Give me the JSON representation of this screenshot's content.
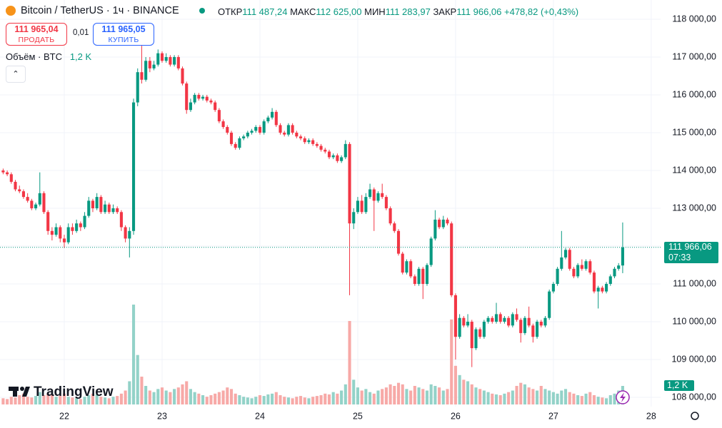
{
  "chart_data": {
    "type": "candlestick",
    "symbol": "Bitcoin / TetherUS · 1ч · BINANCE",
    "ohlc": [
      {
        "label": "ОТКР",
        "value": "111 487,24"
      },
      {
        "label": "МАКС",
        "value": "112 625,00"
      },
      {
        "label": "МИН",
        "value": "111 283,97"
      },
      {
        "label": "ЗАКР",
        "value": "111 966,06"
      }
    ],
    "change": "+478,82 (+0,43%)",
    "sell": {
      "price": "111 965,04",
      "label": "ПРОДАТЬ"
    },
    "spread": "0,01",
    "buy": {
      "price": "111 965,05",
      "label": "КУПИТЬ"
    },
    "last_price_label": "111 966,06",
    "countdown": "07:33",
    "logo": "TradingView",
    "up_color": "#089981",
    "down_color": "#f23645",
    "up_volume_color": "#93d2c8",
    "down_volume_color": "#f7a9a7",
    "grid": true,
    "xlim": [
      8.23,
      170.3
    ],
    "xticks": [
      {
        "value": 24,
        "label": "22"
      },
      {
        "value": 48,
        "label": "23"
      },
      {
        "value": 72,
        "label": "24"
      },
      {
        "value": 96,
        "label": "25"
      },
      {
        "value": 120,
        "label": "26"
      },
      {
        "value": 144,
        "label": "27"
      },
      {
        "value": 168,
        "label": "28"
      }
    ],
    "ylim": [
      107755,
      118509
    ],
    "yticks": [
      {
        "value": 108000,
        "label": "108 000,00"
      },
      {
        "value": 109000,
        "label": "109 000,00"
      },
      {
        "value": 110000,
        "label": "110 000,00"
      },
      {
        "value": 111000,
        "label": "111 000,00"
      },
      {
        "value": 112000,
        "label": "112 000,00"
      },
      {
        "value": 113000,
        "label": "113 000,00"
      },
      {
        "value": 114000,
        "label": "114 000,00"
      },
      {
        "value": 115000,
        "label": "115 000,00"
      },
      {
        "value": 116000,
        "label": "116 000,00"
      },
      {
        "value": 117000,
        "label": "117 000,00"
      },
      {
        "value": 118000,
        "label": "118 000,00"
      }
    ],
    "x": [
      9,
      10,
      11,
      12,
      13,
      14,
      15,
      16,
      17,
      18,
      19,
      20,
      21,
      22,
      23,
      24,
      25,
      26,
      27,
      28,
      29,
      30,
      31,
      32,
      33,
      34,
      35,
      36,
      37,
      38,
      39,
      40,
      41,
      42,
      43,
      44,
      45,
      46,
      47,
      48,
      49,
      50,
      51,
      52,
      53,
      54,
      55,
      56,
      57,
      58,
      59,
      60,
      61,
      62,
      63,
      64,
      65,
      66,
      67,
      68,
      69,
      70,
      71,
      72,
      73,
      74,
      75,
      76,
      77,
      78,
      79,
      80,
      81,
      82,
      83,
      84,
      85,
      86,
      87,
      88,
      89,
      90,
      91,
      92,
      93,
      94,
      95,
      96,
      97,
      98,
      99,
      100,
      101,
      102,
      103,
      104,
      105,
      106,
      107,
      108,
      109,
      110,
      111,
      112,
      113,
      114,
      115,
      116,
      117,
      118,
      119,
      120,
      121,
      122,
      123,
      124,
      125,
      126,
      127,
      128,
      129,
      130,
      131,
      132,
      133,
      134,
      135,
      136,
      137,
      138,
      139,
      140,
      141,
      142,
      143,
      144,
      145,
      146,
      147,
      148,
      149,
      150,
      151,
      152,
      153,
      154,
      155,
      156,
      157,
      158,
      159,
      160,
      161
    ],
    "candles": [
      [
        114000,
        114050,
        113900,
        113950
      ],
      [
        113950,
        114000,
        113850,
        113900
      ],
      [
        113900,
        113950,
        113650,
        113700
      ],
      [
        113700,
        113750,
        113450,
        113500
      ],
      [
        113500,
        113600,
        113400,
        113450
      ],
      [
        113450,
        113500,
        113250,
        113300
      ],
      [
        113300,
        113400,
        113150,
        113200
      ],
      [
        113200,
        113250,
        112950,
        113000
      ],
      [
        113000,
        113150,
        112950,
        113100
      ],
      [
        113100,
        113950,
        113050,
        113400
      ],
      [
        113400,
        113450,
        112850,
        112900
      ],
      [
        112900,
        112950,
        112300,
        112400
      ],
      [
        112400,
        112500,
        112150,
        112300
      ],
      [
        112300,
        112600,
        112250,
        112500
      ],
      [
        112500,
        112550,
        112100,
        112200
      ],
      [
        112200,
        112300,
        111950,
        112100
      ],
      [
        112100,
        112600,
        112050,
        112500
      ],
      [
        112500,
        112600,
        112300,
        112400
      ],
      [
        112400,
        112700,
        112350,
        112600
      ],
      [
        112600,
        112650,
        112400,
        112500
      ],
      [
        112500,
        112900,
        112450,
        112800
      ],
      [
        112800,
        113300,
        112750,
        113200
      ],
      [
        113200,
        113250,
        112900,
        113000
      ],
      [
        113000,
        113400,
        112950,
        113300
      ],
      [
        113300,
        113350,
        112850,
        112900
      ],
      [
        112900,
        113200,
        112850,
        113100
      ],
      [
        113100,
        113150,
        112850,
        112900
      ],
      [
        112900,
        113100,
        112850,
        113000
      ],
      [
        113000,
        113050,
        112850,
        112900
      ],
      [
        112900,
        112950,
        112400,
        112500
      ],
      [
        112500,
        112550,
        112100,
        112200
      ],
      [
        112200,
        112500,
        111700,
        112400
      ],
      [
        112400,
        115900,
        112300,
        115800
      ],
      [
        115800,
        116700,
        115700,
        116600
      ],
      [
        116600,
        117300,
        116300,
        116400
      ],
      [
        116400,
        117000,
        116350,
        116900
      ],
      [
        116900,
        117000,
        116600,
        116700
      ],
      [
        116700,
        116900,
        116650,
        116800
      ],
      [
        116800,
        117200,
        116750,
        117100
      ],
      [
        117100,
        117150,
        116850,
        116900
      ],
      [
        116900,
        117100,
        116850,
        117000
      ],
      [
        117000,
        117050,
        116750,
        116800
      ],
      [
        116800,
        117050,
        116750,
        117000
      ],
      [
        117000,
        117050,
        116650,
        116700
      ],
      [
        116700,
        116750,
        116250,
        116300
      ],
      [
        116300,
        116350,
        115500,
        115600
      ],
      [
        115600,
        115900,
        115550,
        115800
      ],
      [
        115800,
        116050,
        115750,
        116000
      ],
      [
        116000,
        116050,
        115850,
        115900
      ],
      [
        115900,
        116000,
        115850,
        115950
      ],
      [
        115950,
        116000,
        115800,
        115850
      ],
      [
        115850,
        115900,
        115750,
        115800
      ],
      [
        115800,
        115850,
        115550,
        115600
      ],
      [
        115600,
        115650,
        115250,
        115300
      ],
      [
        115300,
        115350,
        115100,
        115150
      ],
      [
        115150,
        115200,
        114950,
        115000
      ],
      [
        115000,
        115050,
        114650,
        114700
      ],
      [
        114700,
        114750,
        114550,
        114600
      ],
      [
        114600,
        114900,
        114550,
        114850
      ],
      [
        114850,
        114950,
        114800,
        114900
      ],
      [
        114900,
        115050,
        114850,
        115000
      ],
      [
        115000,
        115100,
        114950,
        115050
      ],
      [
        115050,
        115200,
        115000,
        115150
      ],
      [
        115150,
        115200,
        114950,
        115000
      ],
      [
        115000,
        115350,
        114950,
        115300
      ],
      [
        115300,
        115450,
        115250,
        115400
      ],
      [
        115400,
        115650,
        115350,
        115550
      ],
      [
        115550,
        115600,
        115150,
        115200
      ],
      [
        115200,
        115250,
        114950,
        115000
      ],
      [
        115000,
        115050,
        114900,
        114950
      ],
      [
        114950,
        115250,
        114900,
        115200
      ],
      [
        115200,
        115250,
        114950,
        115000
      ],
      [
        115000,
        115050,
        114850,
        114900
      ],
      [
        114900,
        114950,
        114800,
        114850
      ],
      [
        114850,
        114900,
        114700,
        114750
      ],
      [
        114750,
        114850,
        114700,
        114800
      ],
      [
        114800,
        114850,
        114650,
        114700
      ],
      [
        114700,
        114750,
        114600,
        114650
      ],
      [
        114650,
        114700,
        114500,
        114550
      ],
      [
        114550,
        114600,
        114450,
        114500
      ],
      [
        114500,
        114550,
        114300,
        114350
      ],
      [
        114350,
        114450,
        114300,
        114400
      ],
      [
        114400,
        114450,
        114200,
        114250
      ],
      [
        114250,
        114400,
        114200,
        114350
      ],
      [
        114350,
        114800,
        114300,
        114700
      ],
      [
        114700,
        114750,
        110700,
        112600
      ],
      [
        112600,
        113000,
        112450,
        112900
      ],
      [
        112900,
        113300,
        112850,
        113200
      ],
      [
        113200,
        113350,
        112850,
        112900
      ],
      [
        112900,
        113400,
        112850,
        113300
      ],
      [
        113300,
        113650,
        113250,
        113500
      ],
      [
        113500,
        113550,
        112400,
        113200
      ],
      [
        113200,
        113450,
        113150,
        113400
      ],
      [
        113400,
        113650,
        113250,
        113300
      ],
      [
        113300,
        113350,
        112950,
        113000
      ],
      [
        113000,
        113050,
        112550,
        112600
      ],
      [
        112600,
        112650,
        112350,
        112400
      ],
      [
        112400,
        112450,
        111750,
        111800
      ],
      [
        111800,
        111850,
        111250,
        111300
      ],
      [
        111300,
        111650,
        111250,
        111600
      ],
      [
        111600,
        111650,
        111150,
        111200
      ],
      [
        111200,
        111250,
        110950,
        111000
      ],
      [
        111000,
        111450,
        110950,
        111400
      ],
      [
        111400,
        111450,
        110600,
        111000
      ],
      [
        111000,
        111550,
        110950,
        111500
      ],
      [
        111500,
        112250,
        111450,
        112200
      ],
      [
        112200,
        112950,
        112150,
        112700
      ],
      [
        112700,
        112750,
        112450,
        112500
      ],
      [
        112500,
        112800,
        112450,
        112700
      ],
      [
        112700,
        112750,
        112550,
        112600
      ],
      [
        112600,
        112650,
        110650,
        110700
      ],
      [
        110700,
        110750,
        109000,
        109600
      ],
      [
        109600,
        110200,
        109550,
        110100
      ],
      [
        110100,
        110150,
        109850,
        109900
      ],
      [
        109900,
        110200,
        109850,
        110000
      ],
      [
        110000,
        110050,
        108800,
        109300
      ],
      [
        109300,
        109850,
        109250,
        109800
      ],
      [
        109800,
        109850,
        109550,
        109600
      ],
      [
        109600,
        110050,
        109550,
        110000
      ],
      [
        110000,
        110150,
        109950,
        110100
      ],
      [
        110100,
        110150,
        109950,
        110000
      ],
      [
        110000,
        110500,
        109950,
        110200
      ],
      [
        110200,
        110250,
        109950,
        110000
      ],
      [
        110000,
        110150,
        109950,
        110100
      ],
      [
        110100,
        110150,
        109850,
        109900
      ],
      [
        109900,
        110250,
        109850,
        110200
      ],
      [
        110200,
        110350,
        110000,
        110050
      ],
      [
        110050,
        110100,
        109450,
        109700
      ],
      [
        109700,
        110150,
        109650,
        110100
      ],
      [
        110100,
        110400,
        109850,
        109900
      ],
      [
        109900,
        109950,
        109450,
        109600
      ],
      [
        109600,
        110050,
        109550,
        110000
      ],
      [
        110000,
        110050,
        109850,
        109900
      ],
      [
        109900,
        110150,
        109850,
        110100
      ],
      [
        110100,
        110850,
        110050,
        110800
      ],
      [
        110800,
        111050,
        110750,
        111000
      ],
      [
        111000,
        111450,
        110950,
        111400
      ],
      [
        111400,
        112400,
        111350,
        111700
      ],
      [
        111700,
        111950,
        111650,
        111900
      ],
      [
        111900,
        111950,
        111350,
        111400
      ],
      [
        111400,
        111450,
        111150,
        111200
      ],
      [
        111200,
        111550,
        111150,
        111500
      ],
      [
        111500,
        111650,
        111350,
        111400
      ],
      [
        111400,
        111650,
        111350,
        111600
      ],
      [
        111600,
        111650,
        111250,
        111300
      ],
      [
        111300,
        111350,
        110750,
        110800
      ],
      [
        110800,
        110950,
        110350,
        110900
      ],
      [
        110900,
        110950,
        110750,
        110800
      ],
      [
        110800,
        111050,
        110750,
        111000
      ],
      [
        111000,
        111250,
        110950,
        111200
      ],
      [
        111200,
        111450,
        111150,
        111400
      ],
      [
        111400,
        111550,
        111350,
        111487.24
      ],
      [
        111487.24,
        112625,
        111283.97,
        111966.06
      ]
    ],
    "volume": {
      "title": "Объём · BTC",
      "last_label": "1,2 K",
      "values": [
        400,
        350,
        500,
        450,
        600,
        700,
        500,
        450,
        550,
        800,
        600,
        700,
        650,
        500,
        550,
        700,
        500,
        450,
        400,
        350,
        500,
        600,
        700,
        650,
        500,
        450,
        400,
        500,
        550,
        700,
        900,
        1500,
        6460,
        3200,
        1800,
        1200,
        900,
        800,
        1000,
        1100,
        900,
        800,
        1000,
        1100,
        1300,
        1500,
        1000,
        800,
        700,
        600,
        500,
        600,
        700,
        800,
        900,
        1100,
        1000,
        700,
        600,
        500,
        450,
        400,
        500,
        600,
        550,
        650,
        700,
        800,
        600,
        500,
        450,
        400,
        500,
        550,
        450,
        400,
        500,
        550,
        600,
        700,
        650,
        800,
        700,
        900,
        1300,
        5400,
        1600,
        1100,
        900,
        1000,
        800,
        700,
        900,
        1000,
        1100,
        1300,
        1200,
        1400,
        1300,
        1000,
        900,
        1200,
        1100,
        1000,
        900,
        1300,
        1200,
        1100,
        900,
        1000,
        5500,
        2500,
        1900,
        1600,
        1500,
        1300,
        1100,
        1000,
        900,
        800,
        700,
        650,
        600,
        700,
        800,
        900,
        1200,
        1400,
        1300,
        1100,
        1000,
        900,
        1200,
        1000,
        900,
        800,
        700,
        900,
        1000,
        800,
        700,
        600,
        550,
        700,
        800,
        600,
        500,
        450,
        400,
        600,
        700,
        900,
        1200
      ]
    }
  }
}
